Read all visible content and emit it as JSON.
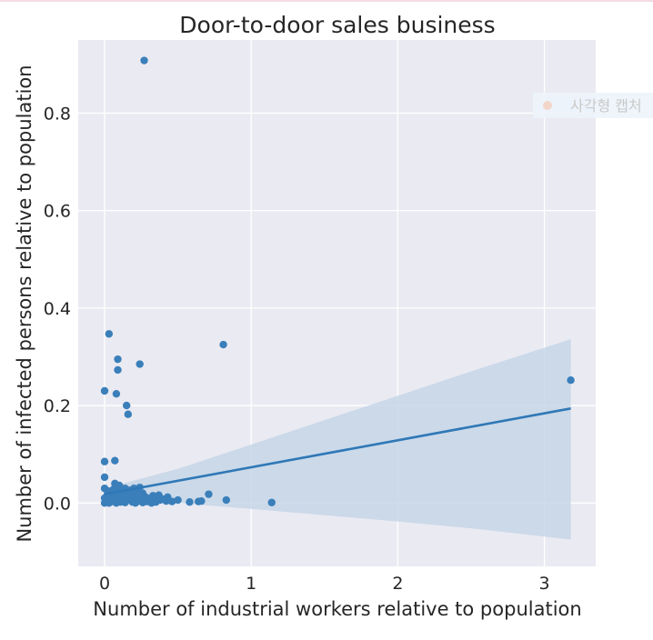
{
  "chart_data": {
    "type": "scatter",
    "title": "Door-to-door sales business",
    "xlabel": "Number of industrial workers relative to population",
    "ylabel": "Number of infected persons relative to population",
    "xlim": [
      -0.18,
      3.35
    ],
    "ylim": [
      -0.13,
      0.95
    ],
    "xticks": [
      0,
      1,
      2,
      3
    ],
    "yticks": [
      0.0,
      0.2,
      0.4,
      0.6,
      0.8
    ],
    "ytick_labels": [
      "0.0",
      "0.2",
      "0.4",
      "0.6",
      "0.8"
    ],
    "grid": true,
    "colors": {
      "points": "#3a7fba",
      "line": "#2f78b7",
      "band": "#c6d6e8",
      "plot_bg": "#eaeaf2",
      "grid": "#ffffff"
    },
    "points": [
      [
        0.27,
        0.908
      ],
      [
        0.03,
        0.347
      ],
      [
        0.81,
        0.325
      ],
      [
        0.09,
        0.295
      ],
      [
        0.24,
        0.285
      ],
      [
        0.09,
        0.273
      ],
      [
        0.0,
        0.23
      ],
      [
        0.08,
        0.224
      ],
      [
        0.15,
        0.2
      ],
      [
        0.16,
        0.182
      ],
      [
        3.18,
        0.252
      ],
      [
        0.0,
        0.085
      ],
      [
        0.07,
        0.087
      ],
      [
        0.0,
        0.053
      ],
      [
        0.07,
        0.04
      ],
      [
        0.1,
        0.036
      ],
      [
        0.0,
        0.03
      ],
      [
        0.02,
        0.025
      ],
      [
        0.05,
        0.02
      ],
      [
        0.09,
        0.022
      ],
      [
        0.12,
        0.018
      ],
      [
        0.15,
        0.02
      ],
      [
        0.17,
        0.026
      ],
      [
        0.2,
        0.015
      ],
      [
        0.22,
        0.028
      ],
      [
        0.24,
        0.032
      ],
      [
        0.26,
        0.02
      ],
      [
        0.28,
        0.012
      ],
      [
        0.33,
        0.015
      ],
      [
        0.37,
        0.016
      ],
      [
        0.43,
        0.012
      ],
      [
        0.3,
        0.008
      ],
      [
        0.34,
        0.005
      ],
      [
        0.38,
        0.006
      ],
      [
        0.42,
        0.004
      ],
      [
        0.46,
        0.003
      ],
      [
        0.5,
        0.006
      ],
      [
        0.58,
        0.002
      ],
      [
        0.64,
        0.003
      ],
      [
        0.66,
        0.004
      ],
      [
        0.71,
        0.018
      ],
      [
        0.83,
        0.006
      ],
      [
        1.14,
        0.001
      ],
      [
        0.0,
        0.01
      ],
      [
        0.0,
        0.0
      ],
      [
        0.01,
        0.005
      ],
      [
        0.02,
        0.012
      ],
      [
        0.03,
        0.0
      ],
      [
        0.04,
        0.008
      ],
      [
        0.05,
        0.003
      ],
      [
        0.06,
        0.015
      ],
      [
        0.07,
        0.006
      ],
      [
        0.08,
        0.0
      ],
      [
        0.1,
        0.009
      ],
      [
        0.11,
        0.002
      ],
      [
        0.12,
        0.005
      ],
      [
        0.13,
        0.012
      ],
      [
        0.14,
        0.001
      ],
      [
        0.16,
        0.007
      ],
      [
        0.18,
        0.01
      ],
      [
        0.19,
        0.002
      ],
      [
        0.2,
        0.006
      ],
      [
        0.21,
        0.0
      ],
      [
        0.22,
        0.011
      ],
      [
        0.23,
        0.004
      ],
      [
        0.25,
        0.008
      ],
      [
        0.26,
        0.001
      ],
      [
        0.27,
        0.005
      ],
      [
        0.29,
        0.003
      ],
      [
        0.31,
        0.009
      ],
      [
        0.32,
        0.0
      ],
      [
        0.35,
        0.002
      ],
      [
        0.4,
        0.008
      ],
      [
        0.06,
        0.028
      ],
      [
        0.11,
        0.025
      ],
      [
        0.14,
        0.03
      ],
      [
        0.18,
        0.022
      ],
      [
        0.2,
        0.03
      ],
      [
        0.02,
        0.018
      ],
      [
        0.04,
        0.014
      ],
      [
        0.13,
        0.016
      ],
      [
        0.17,
        0.012
      ],
      [
        0.24,
        0.018
      ]
    ],
    "regression": {
      "x": [
        0.0,
        3.18
      ],
      "y": [
        0.018,
        0.194
      ]
    },
    "confidence_band": {
      "x": [
        0.0,
        0.5,
        1.0,
        1.5,
        2.0,
        2.5,
        3.18
      ],
      "upper": [
        0.03,
        0.07,
        0.12,
        0.17,
        0.22,
        0.27,
        0.336
      ],
      "lower": [
        0.006,
        0.0,
        -0.012,
        -0.025,
        -0.038,
        -0.052,
        -0.075
      ]
    }
  },
  "overlay": {
    "text": "사각형 캡처"
  }
}
